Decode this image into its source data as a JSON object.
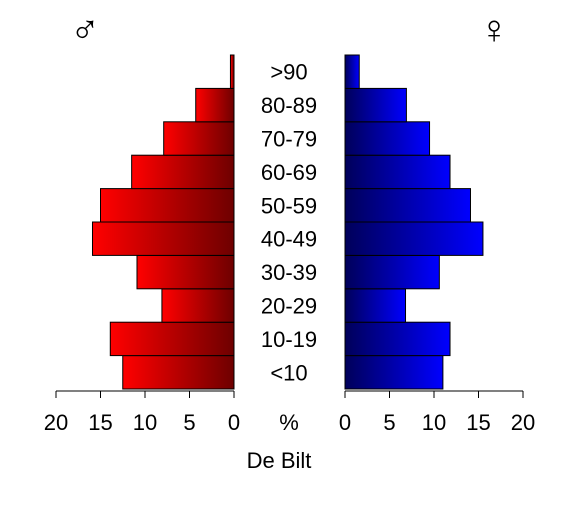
{
  "chart_data": {
    "type": "bar",
    "orientation": "horizontal",
    "layout": "population-pyramid",
    "title": "De Bilt",
    "center_unit": "%",
    "categories": [
      "<10",
      "10-19",
      "20-29",
      "30-39",
      "40-49",
      "50-59",
      "60-69",
      "70-79",
      "80-89",
      ">90"
    ],
    "series": [
      {
        "symbol": "♂",
        "side": "left",
        "color_light": "#ff0000",
        "color_dark": "#6e0000",
        "values": [
          12.5,
          13.9,
          8.1,
          10.9,
          15.9,
          15.0,
          11.5,
          7.9,
          4.3,
          0.4
        ]
      },
      {
        "symbol": "♀",
        "side": "right",
        "color_light": "#0000ff",
        "color_dark": "#00005a",
        "values": [
          11.0,
          11.8,
          6.8,
          10.6,
          15.5,
          14.1,
          11.8,
          9.5,
          6.9,
          1.6
        ]
      }
    ],
    "xlim": [
      0,
      20
    ],
    "xticks": [
      20,
      15,
      10,
      5,
      0
    ],
    "grid": false,
    "legend": "none"
  }
}
